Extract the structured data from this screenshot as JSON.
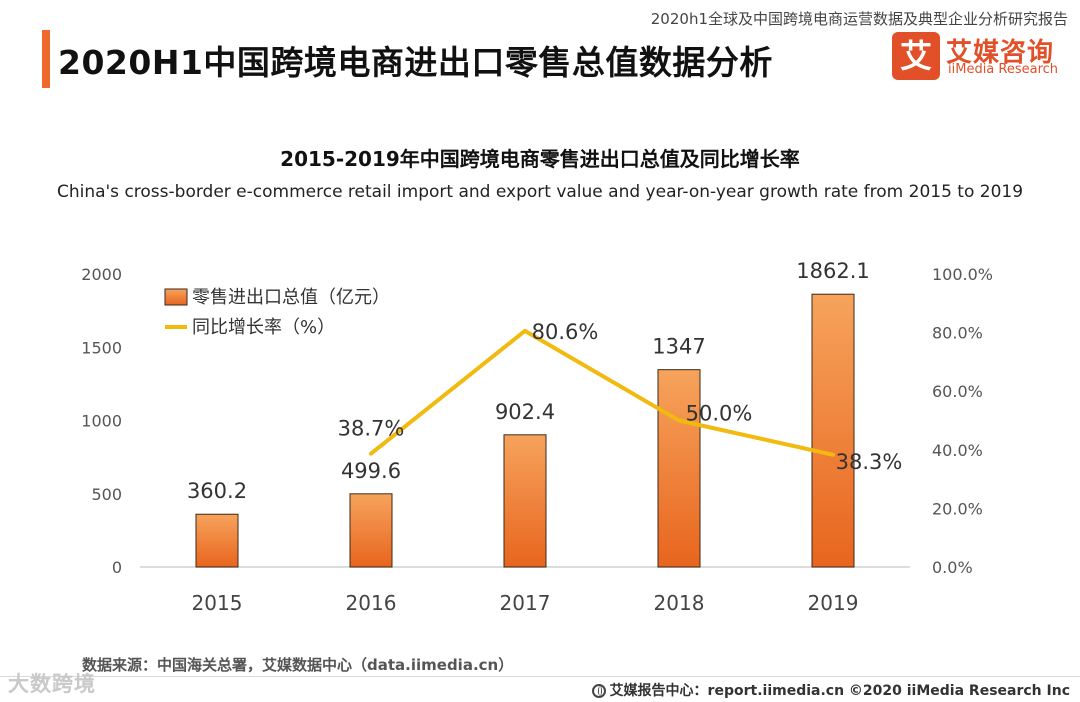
{
  "header": {
    "report_title": "2020h1全球及中国跨境电商运营数据及典型企业分析研究报告",
    "main_title": "2020H1中国跨境电商进出口零售总值数据分析",
    "logo_mark": "艾",
    "logo_cn": "艾媒咨询",
    "logo_en": "iiMedia Research"
  },
  "chart_data": {
    "type": "bar",
    "title": "2015-2019年中国跨境电商零售进出口总值及同比增长率",
    "subtitle": "China's cross-border e-commerce retail import and export value and year-on-year growth rate from 2015 to 2019",
    "categories": [
      "2015",
      "2016",
      "2017",
      "2018",
      "2019"
    ],
    "series": [
      {
        "name": "零售进出口总值（亿元）",
        "type": "bar",
        "axis": "left",
        "values": [
          360.2,
          499.6,
          902.4,
          1347,
          1862.1
        ],
        "labels": [
          "360.2",
          "499.6",
          "902.4",
          "1347",
          "1862.1"
        ],
        "color": "#ee7d2e"
      },
      {
        "name": "同比增长率（%）",
        "type": "line",
        "axis": "right",
        "x": [
          "2016",
          "2017",
          "2018",
          "2019"
        ],
        "values": [
          38.7,
          80.6,
          50.0,
          38.3
        ],
        "labels": [
          "38.7%",
          "80.6%",
          "50.0%",
          "38.3%"
        ],
        "color": "#f2b90f"
      }
    ],
    "y_left": {
      "min": 0,
      "max": 2000,
      "ticks": [
        0,
        500,
        1000,
        1500,
        2000
      ]
    },
    "y_right": {
      "min": 0,
      "max": 100,
      "ticks": [
        "0.0%",
        "20.0%",
        "40.0%",
        "60.0%",
        "80.0%",
        "100.0%"
      ]
    },
    "legend_position": "top-left",
    "grid": false
  },
  "source": "数据来源：中国海关总署，艾媒数据中心（data.iimedia.cn）",
  "watermark": "大数跨境",
  "footer": "艾媒报告中心：report.iimedia.cn   ©2020  iiMedia Research  Inc",
  "colors": {
    "accent": "#ee6a2c",
    "bar": "#ee7d2e",
    "line": "#f2b90f",
    "brand": "#e2502a"
  }
}
